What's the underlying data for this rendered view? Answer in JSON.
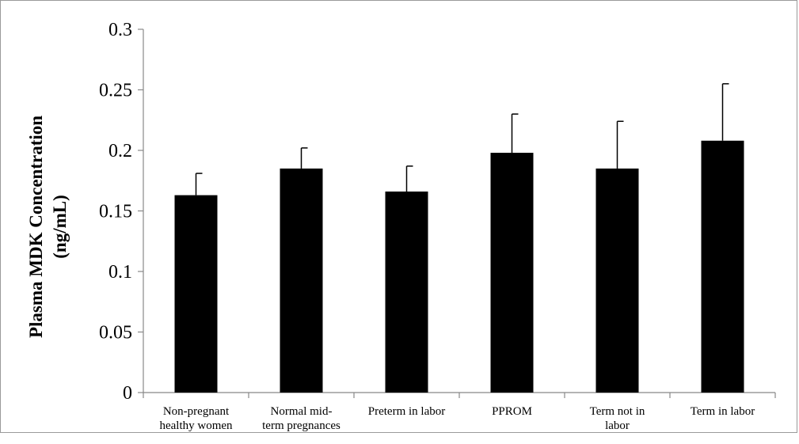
{
  "chart_data": {
    "type": "bar",
    "title": "",
    "xlabel": "",
    "ylabel": [
      "Plasma MDK Concentration",
      "(ng/mL)"
    ],
    "ylim": [
      0,
      0.3
    ],
    "yticks": [
      "0",
      "0.05",
      "0.1",
      "0.15",
      "0.2",
      "0.25",
      "0.3"
    ],
    "ytick_values": [
      0,
      0.05,
      0.1,
      0.15,
      0.2,
      0.25,
      0.3
    ],
    "categories": [
      [
        "Non-pregnant",
        "healthy women"
      ],
      [
        "Normal mid-",
        "term pregnances"
      ],
      [
        "Preterm in labor"
      ],
      [
        "PPROM"
      ],
      [
        "Term not in",
        "labor"
      ],
      [
        "Term in labor"
      ]
    ],
    "values": [
      0.163,
      0.185,
      0.166,
      0.198,
      0.185,
      0.208
    ],
    "error_upper": [
      0.018,
      0.017,
      0.021,
      0.032,
      0.039,
      0.047
    ],
    "bar_color": "#000000",
    "grid": false,
    "legend": "none"
  }
}
